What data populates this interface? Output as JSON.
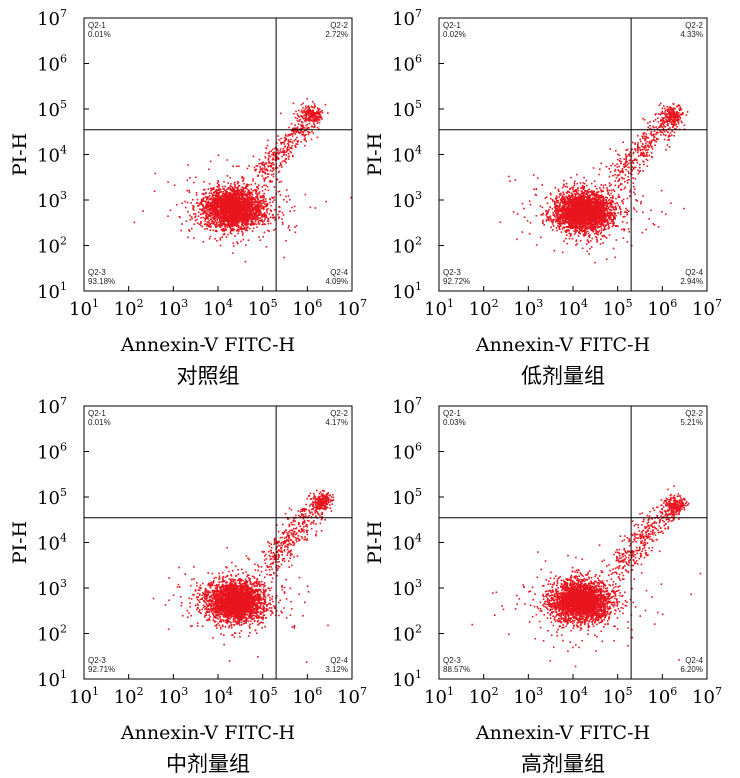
{
  "chart_data": [
    {
      "type": "scatter",
      "title": "对照组",
      "xlabel": "Annexin-V FITC-H",
      "ylabel": "PI-H",
      "x_scale": "log",
      "y_scale": "log",
      "xlim": [
        10,
        10000000
      ],
      "ylim": [
        10,
        10000000
      ],
      "x_ticks": [
        1,
        2,
        3,
        4,
        5,
        6,
        7
      ],
      "y_ticks": [
        1,
        2,
        3,
        4,
        5,
        6,
        7
      ],
      "gates": {
        "x": 200000,
        "y": 35000
      },
      "marker_color": "#e8141e",
      "quadrants": [
        {
          "name": "Q2-1",
          "percent": "0.01%",
          "position": "top-left"
        },
        {
          "name": "Q2-2",
          "percent": "2.72%",
          "position": "top-right"
        },
        {
          "name": "Q2-3",
          "percent": "93.18%",
          "position": "bottom-left"
        },
        {
          "name": "Q2-4",
          "percent": "4.09%",
          "position": "bottom-right"
        }
      ],
      "populations": {
        "main": {
          "center": [
            22000,
            650
          ],
          "spread": [
            0.33,
            0.22
          ]
        },
        "late_apoptotic": {
          "center": [
            1300000,
            75000
          ],
          "spread": [
            0.12,
            0.1
          ]
        }
      }
    },
    {
      "type": "scatter",
      "title": "低剂量组",
      "xlabel": "Annexin-V FITC-H",
      "ylabel": "PI-H",
      "x_scale": "log",
      "y_scale": "log",
      "xlim": [
        10,
        10000000
      ],
      "ylim": [
        10,
        10000000
      ],
      "x_ticks": [
        1,
        2,
        3,
        4,
        5,
        6,
        7
      ],
      "y_ticks": [
        1,
        2,
        3,
        4,
        5,
        6,
        7
      ],
      "gates": {
        "x": 200000,
        "y": 35000
      },
      "marker_color": "#e8141e",
      "quadrants": [
        {
          "name": "Q2-1",
          "percent": "0.02%",
          "position": "top-left"
        },
        {
          "name": "Q2-2",
          "percent": "4.33%",
          "position": "top-right"
        },
        {
          "name": "Q2-3",
          "percent": "92.72%",
          "position": "bottom-left"
        },
        {
          "name": "Q2-4",
          "percent": "2.94%",
          "position": "bottom-right"
        }
      ],
      "populations": {
        "main": {
          "center": [
            18000,
            550
          ],
          "spread": [
            0.33,
            0.22
          ]
        },
        "late_apoptotic": {
          "center": [
            1800000,
            70000
          ],
          "spread": [
            0.12,
            0.1
          ]
        }
      }
    },
    {
      "type": "scatter",
      "title": "中剂量组",
      "xlabel": "Annexin-V FITC-H",
      "ylabel": "PI-H",
      "x_scale": "log",
      "y_scale": "log",
      "xlim": [
        10,
        10000000
      ],
      "ylim": [
        10,
        10000000
      ],
      "x_ticks": [
        1,
        2,
        3,
        4,
        5,
        6,
        7
      ],
      "y_ticks": [
        1,
        2,
        3,
        4,
        5,
        6,
        7
      ],
      "gates": {
        "x": 200000,
        "y": 35000
      },
      "marker_color": "#e8141e",
      "quadrants": [
        {
          "name": "Q2-1",
          "percent": "0.01%",
          "position": "top-left"
        },
        {
          "name": "Q2-2",
          "percent": "4.17%",
          "position": "top-right"
        },
        {
          "name": "Q2-3",
          "percent": "92.71%",
          "position": "bottom-left"
        },
        {
          "name": "Q2-4",
          "percent": "3.12%",
          "position": "bottom-right"
        }
      ],
      "populations": {
        "main": {
          "center": [
            25000,
            500
          ],
          "spread": [
            0.33,
            0.22
          ]
        },
        "late_apoptotic": {
          "center": [
            2200000,
            80000
          ],
          "spread": [
            0.12,
            0.1
          ]
        }
      }
    },
    {
      "type": "scatter",
      "title": "高剂量组",
      "xlabel": "Annexin-V FITC-H",
      "ylabel": "PI-H",
      "x_scale": "log",
      "y_scale": "log",
      "xlim": [
        10,
        10000000
      ],
      "ylim": [
        10,
        10000000
      ],
      "x_ticks": [
        1,
        2,
        3,
        4,
        5,
        6,
        7
      ],
      "y_ticks": [
        1,
        2,
        3,
        4,
        5,
        6,
        7
      ],
      "gates": {
        "x": 200000,
        "y": 35000
      },
      "marker_color": "#e8141e",
      "quadrants": [
        {
          "name": "Q2-1",
          "percent": "0.03%",
          "position": "top-left"
        },
        {
          "name": "Q2-2",
          "percent": "5.21%",
          "position": "top-right"
        },
        {
          "name": "Q2-3",
          "percent": "88.57%",
          "position": "bottom-left"
        },
        {
          "name": "Q2-4",
          "percent": "6.20%",
          "position": "bottom-right"
        }
      ],
      "populations": {
        "main": {
          "center": [
            15000,
            500
          ],
          "spread": [
            0.33,
            0.22
          ]
        },
        "late_apoptotic": {
          "center": [
            2000000,
            65000
          ],
          "spread": [
            0.12,
            0.1
          ]
        }
      }
    }
  ]
}
